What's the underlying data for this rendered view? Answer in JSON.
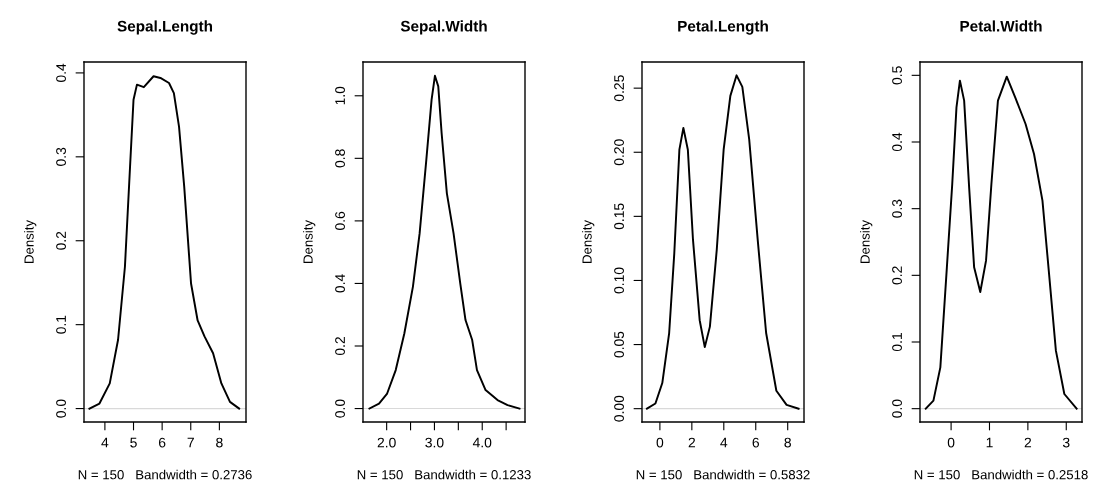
{
  "chart_data": [
    {
      "type": "line",
      "title": "Sepal.Length",
      "xlabel": "N = 150   Bandwidth = 0.2736",
      "ylabel": "Density",
      "series": [
        {
          "color": "#000000",
          "x": [
            3.46,
            3.81,
            4.17,
            4.46,
            4.7,
            4.88,
            5.0,
            5.12,
            5.36,
            5.7,
            5.94,
            6.24,
            6.41,
            6.59,
            6.77,
            7.01,
            7.24,
            7.48,
            7.78,
            8.07,
            8.37,
            8.69
          ],
          "values": [
            0,
            0.006,
            0.03,
            0.082,
            0.169,
            0.289,
            0.368,
            0.386,
            0.383,
            0.396,
            0.394,
            0.388,
            0.376,
            0.336,
            0.265,
            0.149,
            0.105,
            0.086,
            0.066,
            0.03,
            0.008,
            0
          ]
        }
      ],
      "xlim": [
        3.27,
        8.93
      ],
      "ylim": [
        -0.016,
        0.413
      ],
      "xticks": [
        4,
        5,
        6,
        7,
        8
      ],
      "yticks": [
        {
          "value": 0,
          "label": "0.0"
        },
        {
          "value": 0.1,
          "label": "0.1"
        },
        {
          "value": 0.2,
          "label": "0.2"
        },
        {
          "value": 0.3,
          "label": "0.3"
        },
        {
          "value": 0.4,
          "label": "0.4"
        }
      ],
      "ref_lines": [
        {
          "axis": "y",
          "value": 0,
          "color": "#d9d9d9"
        }
      ],
      "marker": "none",
      "line_style": "solid",
      "grid": false,
      "legend": false
    },
    {
      "type": "line",
      "title": "Sepal.Width",
      "xlabel": "N = 150   Bandwidth = 0.1233",
      "ylabel": "Density",
      "series": [
        {
          "color": "#000000",
          "x": [
            1.64,
            1.84,
            2.01,
            2.19,
            2.37,
            2.55,
            2.69,
            2.83,
            2.94,
            3.01,
            3.08,
            3.15,
            3.26,
            3.4,
            3.54,
            3.65,
            3.79,
            3.89,
            4.07,
            4.32,
            4.53,
            4.78
          ],
          "values": [
            0,
            0.016,
            0.048,
            0.123,
            0.24,
            0.39,
            0.56,
            0.795,
            0.987,
            1.064,
            1.03,
            0.881,
            0.688,
            0.56,
            0.4,
            0.283,
            0.219,
            0.123,
            0.059,
            0.027,
            0.011,
            0
          ]
        }
      ],
      "xlim": [
        1.505,
        4.895
      ],
      "ylim": [
        -0.043,
        1.108
      ],
      "xticks": [
        {
          "value": 2.0,
          "label": "2.0"
        },
        {
          "value": 2.5,
          "label": null
        },
        {
          "value": 3.0,
          "label": "3.0"
        },
        {
          "value": 3.5,
          "label": null
        },
        {
          "value": 4.0,
          "label": "4.0"
        },
        {
          "value": 4.5,
          "label": null
        }
      ],
      "yticks": [
        {
          "value": 0,
          "label": "0.0"
        },
        {
          "value": 0.2,
          "label": "0.2"
        },
        {
          "value": 0.4,
          "label": "0.4"
        },
        {
          "value": 0.6,
          "label": "0.6"
        },
        {
          "value": 0.8,
          "label": "0.8"
        },
        {
          "value": 1.0,
          "label": "1.0"
        }
      ],
      "ref_lines": [
        {
          "axis": "y",
          "value": 0,
          "color": "#d9d9d9"
        }
      ],
      "marker": "none",
      "line_style": "solid",
      "grid": false,
      "legend": false
    },
    {
      "type": "line",
      "title": "Petal.Length",
      "xlabel": "N = 150   Bandwidth = 0.5832",
      "ylabel": "Density",
      "series": [
        {
          "color": "#000000",
          "x": [
            -0.81,
            -0.28,
            0.15,
            0.58,
            0.9,
            1.22,
            1.47,
            1.75,
            2.07,
            2.49,
            2.81,
            3.13,
            3.56,
            3.99,
            4.41,
            4.8,
            5.16,
            5.59,
            6.12,
            6.65,
            7.29,
            7.93,
            8.68
          ],
          "values": [
            0,
            0.004,
            0.02,
            0.059,
            0.121,
            0.202,
            0.219,
            0.202,
            0.132,
            0.069,
            0.048,
            0.064,
            0.124,
            0.202,
            0.244,
            0.26,
            0.251,
            0.21,
            0.132,
            0.059,
            0.014,
            0.003,
            0
          ]
        }
      ],
      "xlim": [
        -1.12,
        9.02
      ],
      "ylim": [
        -0.0104,
        0.2704
      ],
      "xticks": [
        0,
        2,
        4,
        6,
        8
      ],
      "yticks": [
        {
          "value": 0,
          "label": "0.00"
        },
        {
          "value": 0.05,
          "label": "0.05"
        },
        {
          "value": 0.1,
          "label": "0.10"
        },
        {
          "value": 0.15,
          "label": "0.15"
        },
        {
          "value": 0.2,
          "label": "0.20"
        },
        {
          "value": 0.25,
          "label": "0.25"
        }
      ],
      "ref_lines": [
        {
          "axis": "y",
          "value": 0,
          "color": "#d9d9d9"
        }
      ],
      "marker": "none",
      "line_style": "solid",
      "grid": false,
      "legend": false
    },
    {
      "type": "line",
      "title": "Petal.Width",
      "xlabel": "N = 150   Bandwidth = 0.2518",
      "ylabel": "Density",
      "series": [
        {
          "color": "#000000",
          "x": [
            -0.66,
            -0.46,
            -0.28,
            -0.11,
            0.03,
            0.14,
            0.23,
            0.34,
            0.47,
            0.6,
            0.76,
            0.91,
            1.05,
            1.22,
            1.45,
            1.67,
            1.94,
            2.16,
            2.38,
            2.56,
            2.73,
            2.95,
            3.27
          ],
          "values": [
            0,
            0.012,
            0.062,
            0.212,
            0.337,
            0.452,
            0.492,
            0.462,
            0.332,
            0.212,
            0.175,
            0.222,
            0.337,
            0.462,
            0.498,
            0.467,
            0.427,
            0.382,
            0.312,
            0.197,
            0.087,
            0.022,
            0
          ]
        }
      ],
      "xlim": [
        -0.81,
        3.41
      ],
      "ylim": [
        -0.02,
        0.52
      ],
      "xticks": [
        0,
        1,
        2,
        3
      ],
      "yticks": [
        {
          "value": 0,
          "label": "0.0"
        },
        {
          "value": 0.1,
          "label": "0.1"
        },
        {
          "value": 0.2,
          "label": "0.2"
        },
        {
          "value": 0.3,
          "label": "0.3"
        },
        {
          "value": 0.4,
          "label": "0.4"
        },
        {
          "value": 0.5,
          "label": "0.5"
        }
      ],
      "ref_lines": [
        {
          "axis": "y",
          "value": 0,
          "color": "#d9d9d9"
        }
      ],
      "marker": "none",
      "line_style": "solid",
      "grid": false,
      "legend": false
    }
  ]
}
